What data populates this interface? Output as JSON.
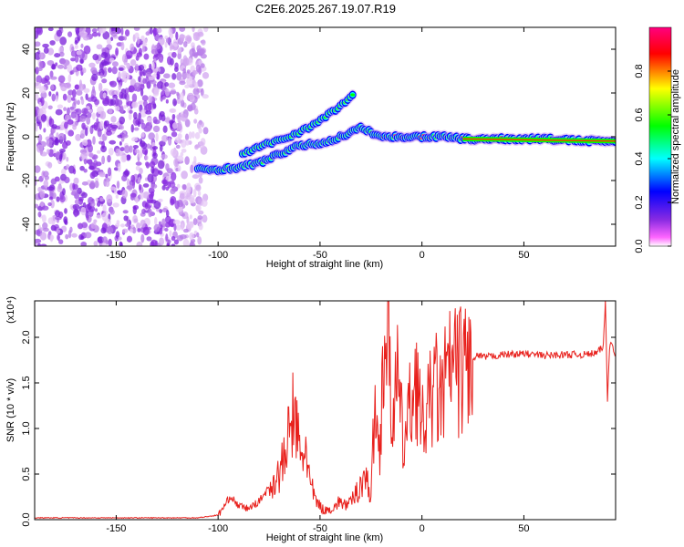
{
  "title": "C2E6.2025.267.19.07.R19",
  "chart_data": [
    {
      "type": "heatmap",
      "xlabel": "Height of straight line (km)",
      "ylabel": "Frequency (Hz)",
      "xlim": [
        -190,
        95
      ],
      "ylim": [
        -50,
        50
      ],
      "xticks": [
        -150,
        -100,
        -50,
        0,
        50
      ],
      "yticks": [
        -40,
        -20,
        0,
        20,
        40
      ],
      "colorbar": {
        "label": "Normalized spectral amplitude",
        "range": [
          0,
          1
        ],
        "ticks": [
          0.0,
          0.2,
          0.4,
          0.6,
          0.8
        ],
        "colors": [
          "#ffffff",
          "#ff66ff",
          "#8a2be2",
          "#0000ff",
          "#00ffff",
          "#00ff00",
          "#ffff00",
          "#ff0000",
          "#ff007f"
        ]
      },
      "features": {
        "noise_region_x": [
          -190,
          -110
        ],
        "noise_frequency_range": [
          -50,
          50
        ],
        "upper_branch": {
          "x": [
            -88,
            -78,
            -65,
            -52,
            -40,
            -33
          ],
          "y": [
            -8,
            -4,
            0,
            6,
            14,
            20
          ]
        },
        "main_trace": {
          "x": [
            -110,
            -100,
            -90,
            -80,
            -70,
            -60,
            -50,
            -45,
            -40,
            -35,
            -30,
            -20,
            -10,
            0,
            10,
            20,
            40,
            60,
            80,
            95
          ],
          "y": [
            -15,
            -15,
            -14,
            -12,
            -8,
            -4,
            -3,
            -2,
            0,
            2,
            4,
            0,
            0,
            0,
            0,
            -1,
            -1,
            -1,
            -2,
            -2
          ]
        }
      }
    },
    {
      "type": "line",
      "xlabel": "Height of straight line (km)",
      "ylabel": "SNR (10 * v/v)",
      "y_scale_note": "(x10⁴)",
      "xlim": [
        -190,
        95
      ],
      "ylim": [
        0,
        2.4
      ],
      "xticks": [
        -150,
        -100,
        -50,
        0,
        50
      ],
      "yticks": [
        0.0,
        0.5,
        1.0,
        1.5,
        2.0
      ],
      "ytick_labels": [
        "0.0",
        "0.5",
        "1.0",
        "1.5",
        "2.0"
      ],
      "series": [
        {
          "color": "#e8201c",
          "x": [
            -190,
            -150,
            -110,
            -100,
            -96,
            -94,
            -90,
            -85,
            -80,
            -75,
            -70,
            -67,
            -65,
            -63,
            -61,
            -59,
            -57,
            -55,
            -52,
            -48,
            -44,
            -40,
            -36,
            -32,
            -28,
            -25,
            -23,
            -21,
            -19,
            -17,
            -15,
            -12,
            -9,
            -6,
            -3,
            0,
            3,
            6,
            9,
            12,
            15,
            18,
            21,
            24,
            27,
            30,
            40,
            50,
            60,
            70,
            80,
            86,
            89,
            90,
            91,
            92,
            93,
            95
          ],
          "y": [
            0.02,
            0.02,
            0.02,
            0.05,
            0.18,
            0.26,
            0.15,
            0.12,
            0.2,
            0.35,
            0.5,
            0.7,
            0.95,
            1.2,
            0.9,
            0.6,
            0.85,
            0.4,
            0.2,
            0.1,
            0.12,
            0.2,
            0.15,
            0.3,
            0.5,
            0.25,
            1.3,
            0.7,
            1.8,
            2.1,
            1.2,
            1.5,
            0.8,
            1.2,
            1.6,
            1.0,
            1.2,
            1.5,
            1.3,
            1.55,
            1.7,
            1.6,
            1.75,
            1.7,
            1.8,
            1.78,
            1.81,
            1.82,
            1.8,
            1.81,
            1.81,
            1.83,
            1.9,
            2.4,
            1.3,
            1.9,
            1.95,
            1.8
          ]
        }
      ]
    }
  ]
}
